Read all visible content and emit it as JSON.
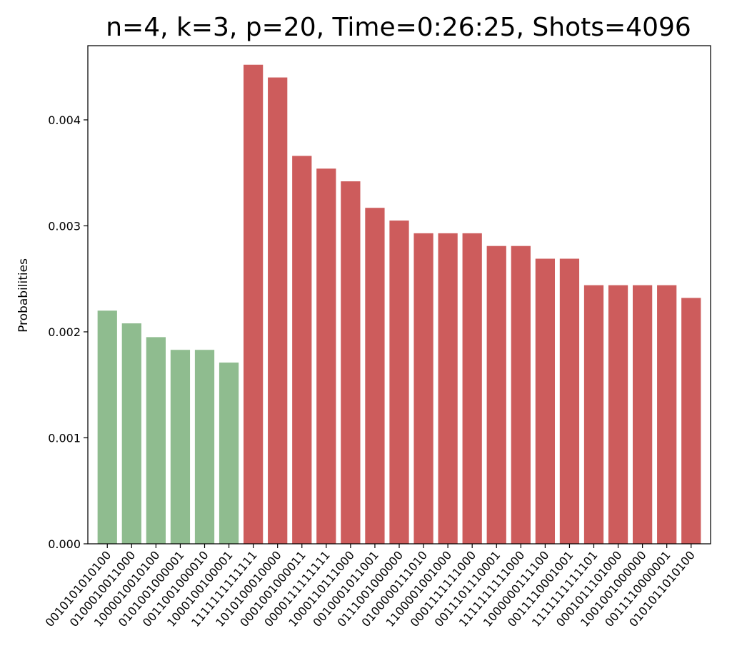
{
  "chart_data": {
    "type": "bar",
    "title": "n=4, k=3, p=20, Time=0:26:25, Shots=4096",
    "xlabel": "",
    "ylabel": "Probabilities",
    "ylim": [
      0,
      0.0047
    ],
    "yticks": [
      0.0,
      0.001,
      0.002,
      0.003,
      0.004
    ],
    "ytick_labels": [
      "0.000",
      "0.001",
      "0.002",
      "0.003",
      "0.004"
    ],
    "grid": false,
    "legend": "none",
    "categories": [
      "0010101010100",
      "0100010011000",
      "1000010010100",
      "0101001000001",
      "0011001000010",
      "1000100100001",
      "1111111111111",
      "1010100010000",
      "0001001000011",
      "0000111111111",
      "1000110111000",
      "0010001011001",
      "0111001000000",
      "0100000111010",
      "1100001001000",
      "0001111111000",
      "0011101110001",
      "1111111111000",
      "1000000111100",
      "0011110001001",
      "1111111111101",
      "0001011101000",
      "1001001000000",
      "0011110000001",
      "0101011010100"
    ],
    "values": [
      0.0022,
      0.00208,
      0.00195,
      0.00183,
      0.00183,
      0.00171,
      0.00452,
      0.0044,
      0.00366,
      0.00354,
      0.00342,
      0.00317,
      0.00305,
      0.00293,
      0.00293,
      0.00293,
      0.00281,
      0.00281,
      0.00269,
      0.00269,
      0.00244,
      0.00244,
      0.00244,
      0.00244,
      0.00232
    ],
    "bar_colors": [
      "#8fbc8f",
      "#8fbc8f",
      "#8fbc8f",
      "#8fbc8f",
      "#8fbc8f",
      "#8fbc8f",
      "#cd5c5c",
      "#cd5c5c",
      "#cd5c5c",
      "#cd5c5c",
      "#cd5c5c",
      "#cd5c5c",
      "#cd5c5c",
      "#cd5c5c",
      "#cd5c5c",
      "#cd5c5c",
      "#cd5c5c",
      "#cd5c5c",
      "#cd5c5c",
      "#cd5c5c",
      "#cd5c5c",
      "#cd5c5c",
      "#cd5c5c",
      "#cd5c5c",
      "#cd5c5c"
    ],
    "xtick_rotation_deg": 50
  }
}
